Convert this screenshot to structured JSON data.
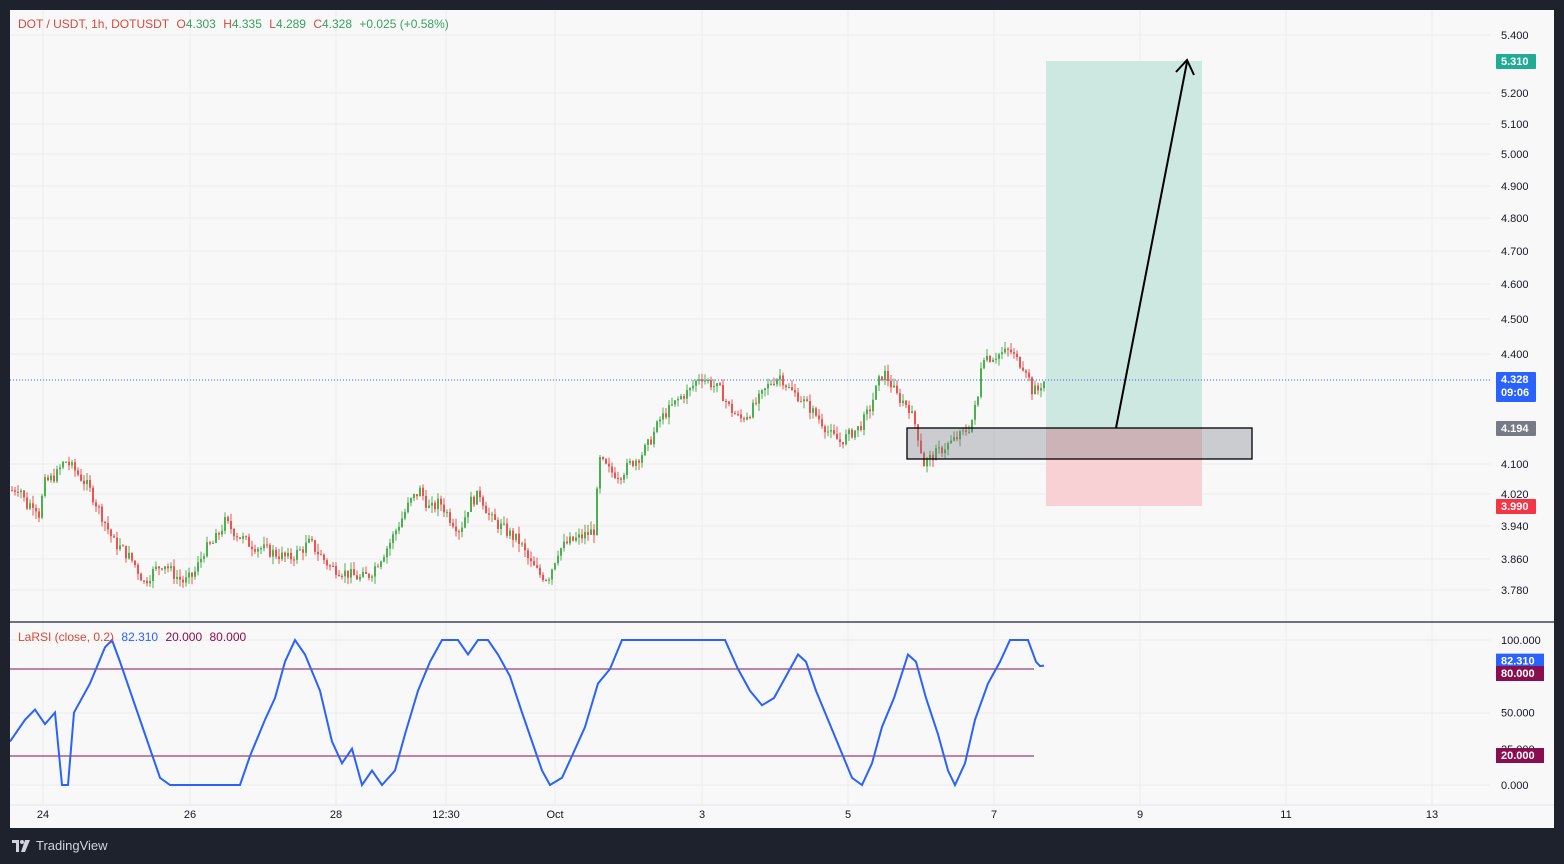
{
  "header": {
    "symbol": "DOT / USDT, 1h, DOTUSDT",
    "open_label": "O",
    "open": "4.303",
    "high_label": "H",
    "high": "4.335",
    "low_label": "L",
    "low": "4.289",
    "close_label": "C",
    "close": "4.328",
    "change": "+0.025 (+0.58%)"
  },
  "indicator": {
    "name": "LaRSI (close, 0.2)",
    "value": "82.310",
    "lower": "20.000",
    "upper": "80.000"
  },
  "price_axis": {
    "ticks": [
      "5.400",
      "5.200",
      "5.100",
      "5.000",
      "4.900",
      "4.800",
      "4.700",
      "4.600",
      "4.500",
      "4.400",
      "4.100",
      "4.020",
      "3.940",
      "3.860",
      "3.780"
    ],
    "tags": {
      "target": "5.310",
      "current": "4.328",
      "countdown": "09:06",
      "entry": "4.194",
      "stop": "3.990"
    }
  },
  "rsi_axis": {
    "ticks": [
      "100.000",
      "50.000",
      "25.000",
      "0.000"
    ],
    "tags": {
      "value": "82.310",
      "upper": "80.000",
      "lower": "20.000"
    }
  },
  "time_axis": {
    "labels": [
      "24",
      "26",
      "28",
      "12:30",
      "Oct",
      "3",
      "5",
      "7",
      "9",
      "11",
      "13"
    ]
  },
  "brand": {
    "name": "TradingView"
  },
  "colors": {
    "up": "#26a69a",
    "up_candle": "#4caf50",
    "down": "#ef5350",
    "rsi_line": "#2962ff",
    "band": "#880e4f",
    "target_zone": "#cde8e1",
    "stop_zone": "#f7d1d3",
    "background": "#f8f8f8",
    "frame": "#1e222d"
  },
  "chart_data": {
    "type": "candlestick",
    "symbol": "DOTUSDT",
    "interval": "1h",
    "x_labels": [
      "24",
      "26",
      "28",
      "12:30",
      "Oct",
      "3",
      "5",
      "7",
      "9",
      "11",
      "13"
    ],
    "ylim": [
      3.72,
      5.45
    ],
    "close_series": [
      {
        "t": 0,
        "v": 4.03
      },
      {
        "t": 8,
        "v": 4.04
      },
      {
        "t": 14,
        "v": 3.99
      },
      {
        "t": 22,
        "v": 4.0
      },
      {
        "t": 27,
        "v": 3.97
      },
      {
        "t": 33,
        "v": 4.05
      },
      {
        "t": 44,
        "v": 4.07
      },
      {
        "t": 53,
        "v": 4.11
      },
      {
        "t": 64,
        "v": 4.08
      },
      {
        "t": 76,
        "v": 4.04
      },
      {
        "t": 91,
        "v": 3.96
      },
      {
        "t": 102,
        "v": 3.9
      },
      {
        "t": 112,
        "v": 3.88
      },
      {
        "t": 122,
        "v": 3.85
      },
      {
        "t": 132,
        "v": 3.8
      },
      {
        "t": 142,
        "v": 3.83
      },
      {
        "t": 152,
        "v": 3.85
      },
      {
        "t": 162,
        "v": 3.82
      },
      {
        "t": 172,
        "v": 3.8
      },
      {
        "t": 182,
        "v": 3.82
      },
      {
        "t": 192,
        "v": 3.88
      },
      {
        "t": 202,
        "v": 3.9
      },
      {
        "t": 213,
        "v": 3.95
      },
      {
        "t": 225,
        "v": 3.92
      },
      {
        "t": 235,
        "v": 3.9
      },
      {
        "t": 245,
        "v": 3.89
      },
      {
        "t": 256,
        "v": 3.88
      },
      {
        "t": 267,
        "v": 3.87
      },
      {
        "t": 277,
        "v": 3.86
      },
      {
        "t": 288,
        "v": 3.88
      },
      {
        "t": 298,
        "v": 3.9
      },
      {
        "t": 308,
        "v": 3.87
      },
      {
        "t": 318,
        "v": 3.84
      },
      {
        "t": 328,
        "v": 3.83
      },
      {
        "t": 338,
        "v": 3.82
      },
      {
        "t": 348,
        "v": 3.81
      },
      {
        "t": 358,
        "v": 3.82
      },
      {
        "t": 368,
        "v": 3.86
      },
      {
        "t": 378,
        "v": 3.9
      },
      {
        "t": 388,
        "v": 3.95
      },
      {
        "t": 398,
        "v": 4.0
      },
      {
        "t": 408,
        "v": 4.03
      },
      {
        "t": 418,
        "v": 3.98
      },
      {
        "t": 428,
        "v": 4.0
      },
      {
        "t": 438,
        "v": 3.96
      },
      {
        "t": 448,
        "v": 3.93
      },
      {
        "t": 458,
        "v": 4.0
      },
      {
        "t": 468,
        "v": 4.02
      },
      {
        "t": 478,
        "v": 3.96
      },
      {
        "t": 488,
        "v": 3.94
      },
      {
        "t": 498,
        "v": 3.92
      },
      {
        "t": 508,
        "v": 3.9
      },
      {
        "t": 518,
        "v": 3.85
      },
      {
        "t": 528,
        "v": 3.82
      },
      {
        "t": 536,
        "v": 3.81
      },
      {
        "t": 546,
        "v": 3.88
      },
      {
        "t": 556,
        "v": 3.9
      },
      {
        "t": 566,
        "v": 3.91
      },
      {
        "t": 575,
        "v": 3.92
      },
      {
        "t": 582,
        "v": 3.93
      },
      {
        "t": 588,
        "v": 4.11
      },
      {
        "t": 598,
        "v": 4.08
      },
      {
        "t": 608,
        "v": 4.07
      },
      {
        "t": 618,
        "v": 4.1
      },
      {
        "t": 628,
        "v": 4.12
      },
      {
        "t": 638,
        "v": 4.16
      },
      {
        "t": 648,
        "v": 4.22
      },
      {
        "t": 658,
        "v": 4.25
      },
      {
        "t": 668,
        "v": 4.28
      },
      {
        "t": 678,
        "v": 4.3
      },
      {
        "t": 688,
        "v": 4.34
      },
      {
        "t": 698,
        "v": 4.32
      },
      {
        "t": 708,
        "v": 4.3
      },
      {
        "t": 718,
        "v": 4.25
      },
      {
        "t": 728,
        "v": 4.22
      },
      {
        "t": 738,
        "v": 4.24
      },
      {
        "t": 748,
        "v": 4.28
      },
      {
        "t": 758,
        "v": 4.32
      },
      {
        "t": 768,
        "v": 4.34
      },
      {
        "t": 778,
        "v": 4.3
      },
      {
        "t": 788,
        "v": 4.28
      },
      {
        "t": 798,
        "v": 4.25
      },
      {
        "t": 808,
        "v": 4.22
      },
      {
        "t": 818,
        "v": 4.18
      },
      {
        "t": 828,
        "v": 4.16
      },
      {
        "t": 838,
        "v": 4.18
      },
      {
        "t": 848,
        "v": 4.2
      },
      {
        "t": 858,
        "v": 4.25
      },
      {
        "t": 866,
        "v": 4.32
      },
      {
        "t": 872,
        "v": 4.35
      },
      {
        "t": 878,
        "v": 4.32
      },
      {
        "t": 886,
        "v": 4.28
      },
      {
        "t": 896,
        "v": 4.26
      },
      {
        "t": 904,
        "v": 4.2
      },
      {
        "t": 912,
        "v": 4.1
      },
      {
        "t": 920,
        "v": 4.12
      },
      {
        "t": 930,
        "v": 4.14
      },
      {
        "t": 940,
        "v": 4.16
      },
      {
        "t": 950,
        "v": 4.18
      },
      {
        "t": 958,
        "v": 4.2
      },
      {
        "t": 966,
        "v": 4.28
      },
      {
        "t": 970,
        "v": 4.4
      },
      {
        "t": 978,
        "v": 4.39
      },
      {
        "t": 988,
        "v": 4.4
      },
      {
        "t": 998,
        "v": 4.41
      },
      {
        "t": 1006,
        "v": 4.38
      },
      {
        "t": 1014,
        "v": 4.36
      },
      {
        "t": 1020,
        "v": 4.3
      },
      {
        "t": 1026,
        "v": 4.3
      },
      {
        "t": 1030,
        "v": 4.32
      },
      {
        "t": 1034,
        "v": 4.328
      }
    ],
    "position": {
      "entry": 4.194,
      "target": 5.31,
      "stop": 3.99
    },
    "rsi": {
      "name": "LaRSI (close, 0.2)",
      "last": 82.31,
      "ylim": [
        0,
        100
      ],
      "levels": [
        20,
        80
      ],
      "series": [
        {
          "t": 0,
          "v": 30
        },
        {
          "t": 15,
          "v": 45
        },
        {
          "t": 25,
          "v": 52
        },
        {
          "t": 35,
          "v": 42
        },
        {
          "t": 45,
          "v": 50
        },
        {
          "t": 52,
          "v": 0
        },
        {
          "t": 58,
          "v": 0
        },
        {
          "t": 64,
          "v": 50
        },
        {
          "t": 80,
          "v": 70
        },
        {
          "t": 95,
          "v": 95
        },
        {
          "t": 102,
          "v": 100
        },
        {
          "t": 110,
          "v": 85
        },
        {
          "t": 125,
          "v": 55
        },
        {
          "t": 140,
          "v": 25
        },
        {
          "t": 150,
          "v": 5
        },
        {
          "t": 160,
          "v": 0
        },
        {
          "t": 230,
          "v": 0
        },
        {
          "t": 240,
          "v": 20
        },
        {
          "t": 255,
          "v": 45
        },
        {
          "t": 265,
          "v": 60
        },
        {
          "t": 275,
          "v": 85
        },
        {
          "t": 285,
          "v": 100
        },
        {
          "t": 295,
          "v": 90
        },
        {
          "t": 310,
          "v": 65
        },
        {
          "t": 322,
          "v": 30
        },
        {
          "t": 332,
          "v": 15
        },
        {
          "t": 342,
          "v": 25
        },
        {
          "t": 352,
          "v": 0
        },
        {
          "t": 362,
          "v": 10
        },
        {
          "t": 372,
          "v": 0
        },
        {
          "t": 385,
          "v": 10
        },
        {
          "t": 395,
          "v": 35
        },
        {
          "t": 408,
          "v": 65
        },
        {
          "t": 420,
          "v": 85
        },
        {
          "t": 432,
          "v": 100
        },
        {
          "t": 448,
          "v": 100
        },
        {
          "t": 458,
          "v": 90
        },
        {
          "t": 468,
          "v": 100
        },
        {
          "t": 478,
          "v": 100
        },
        {
          "t": 488,
          "v": 90
        },
        {
          "t": 500,
          "v": 75
        },
        {
          "t": 512,
          "v": 50
        },
        {
          "t": 522,
          "v": 30
        },
        {
          "t": 532,
          "v": 10
        },
        {
          "t": 540,
          "v": 0
        },
        {
          "t": 552,
          "v": 5
        },
        {
          "t": 562,
          "v": 20
        },
        {
          "t": 575,
          "v": 40
        },
        {
          "t": 588,
          "v": 70
        },
        {
          "t": 600,
          "v": 80
        },
        {
          "t": 612,
          "v": 100
        },
        {
          "t": 715,
          "v": 100
        },
        {
          "t": 728,
          "v": 80
        },
        {
          "t": 740,
          "v": 65
        },
        {
          "t": 752,
          "v": 55
        },
        {
          "t": 764,
          "v": 60
        },
        {
          "t": 776,
          "v": 75
        },
        {
          "t": 788,
          "v": 90
        },
        {
          "t": 796,
          "v": 85
        },
        {
          "t": 806,
          "v": 65
        },
        {
          "t": 818,
          "v": 45
        },
        {
          "t": 830,
          "v": 25
        },
        {
          "t": 842,
          "v": 5
        },
        {
          "t": 852,
          "v": 0
        },
        {
          "t": 862,
          "v": 15
        },
        {
          "t": 872,
          "v": 40
        },
        {
          "t": 884,
          "v": 60
        },
        {
          "t": 898,
          "v": 90
        },
        {
          "t": 906,
          "v": 85
        },
        {
          "t": 916,
          "v": 60
        },
        {
          "t": 928,
          "v": 35
        },
        {
          "t": 938,
          "v": 10
        },
        {
          "t": 945,
          "v": 0
        },
        {
          "t": 955,
          "v": 15
        },
        {
          "t": 965,
          "v": 45
        },
        {
          "t": 978,
          "v": 70
        },
        {
          "t": 990,
          "v": 85
        },
        {
          "t": 1000,
          "v": 100
        },
        {
          "t": 1018,
          "v": 100
        },
        {
          "t": 1026,
          "v": 85
        },
        {
          "t": 1030,
          "v": 82
        },
        {
          "t": 1034,
          "v": 82.31
        }
      ]
    }
  }
}
